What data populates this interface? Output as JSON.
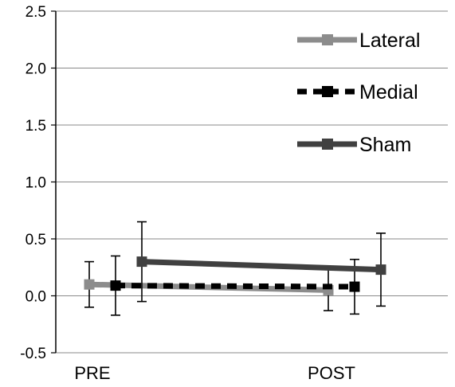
{
  "chart_data": {
    "type": "line",
    "categories": [
      "PRE",
      "POST"
    ],
    "ylim": [
      -0.5,
      2.5
    ],
    "yticks": [
      "2.5",
      "2.0",
      "1.5",
      "1.0",
      "0.5",
      "0.0",
      "-0.5"
    ],
    "ytick_values": [
      2.5,
      2.0,
      1.5,
      1.0,
      0.5,
      0.0,
      -0.5
    ],
    "grid": true,
    "legend_position": "top-right",
    "series": [
      {
        "name": "Lateral",
        "values": [
          0.1,
          0.05
        ],
        "errors": [
          0.2,
          0.18
        ],
        "color": "#8c8c8c",
        "style": "solid"
      },
      {
        "name": "Medial",
        "values": [
          0.09,
          0.08
        ],
        "errors": [
          0.26,
          0.24
        ],
        "color": "#000000",
        "style": "dashed"
      },
      {
        "name": "Sham",
        "values": [
          0.3,
          0.23
        ],
        "errors": [
          0.35,
          0.32
        ],
        "color": "#404040",
        "style": "solid"
      }
    ]
  }
}
